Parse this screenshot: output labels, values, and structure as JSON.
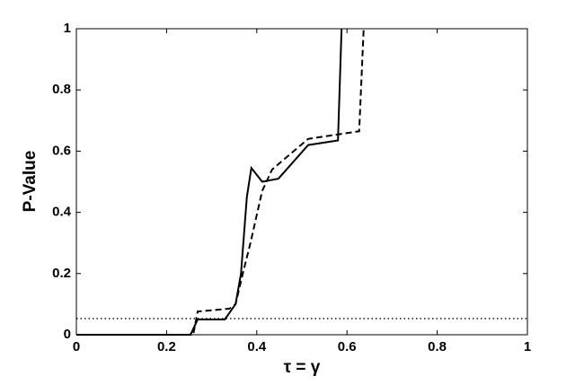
{
  "chart_data": {
    "type": "line",
    "x_label": "τ = γ",
    "y_label": "P-Value",
    "xlim": [
      0,
      1
    ],
    "ylim": [
      0,
      1
    ],
    "xticks": [
      0,
      0.2,
      0.4,
      0.6,
      0.8,
      1
    ],
    "yticks": [
      0,
      0.2,
      0.4,
      0.6,
      0.8,
      1
    ],
    "grid": false,
    "series": [
      {
        "color": "#000000",
        "style": "solid",
        "x": [
          0,
          0.253,
          0.269,
          0.329,
          0.353,
          0.365,
          0.378,
          0.388,
          0.412,
          0.448,
          0.514,
          0.58,
          0.588
        ],
        "values": [
          0,
          0,
          0.05,
          0.05,
          0.1,
          0.2,
          0.45,
          0.545,
          0.5,
          0.51,
          0.62,
          0.635,
          1
        ]
      },
      {
        "color": "#000000",
        "style": "dashed",
        "x": [
          0,
          0.259,
          0.269,
          0.339,
          0.353,
          0.369,
          0.386,
          0.412,
          0.434,
          0.514,
          0.627,
          0.637
        ],
        "values": [
          0,
          0,
          0.076,
          0.085,
          0.1,
          0.2,
          0.3,
          0.47,
          0.54,
          0.64,
          0.665,
          1
        ]
      },
      {
        "color": "#000000",
        "style": "dotted",
        "x": [
          0,
          1
        ],
        "values": [
          0.053,
          0.053
        ]
      }
    ]
  }
}
